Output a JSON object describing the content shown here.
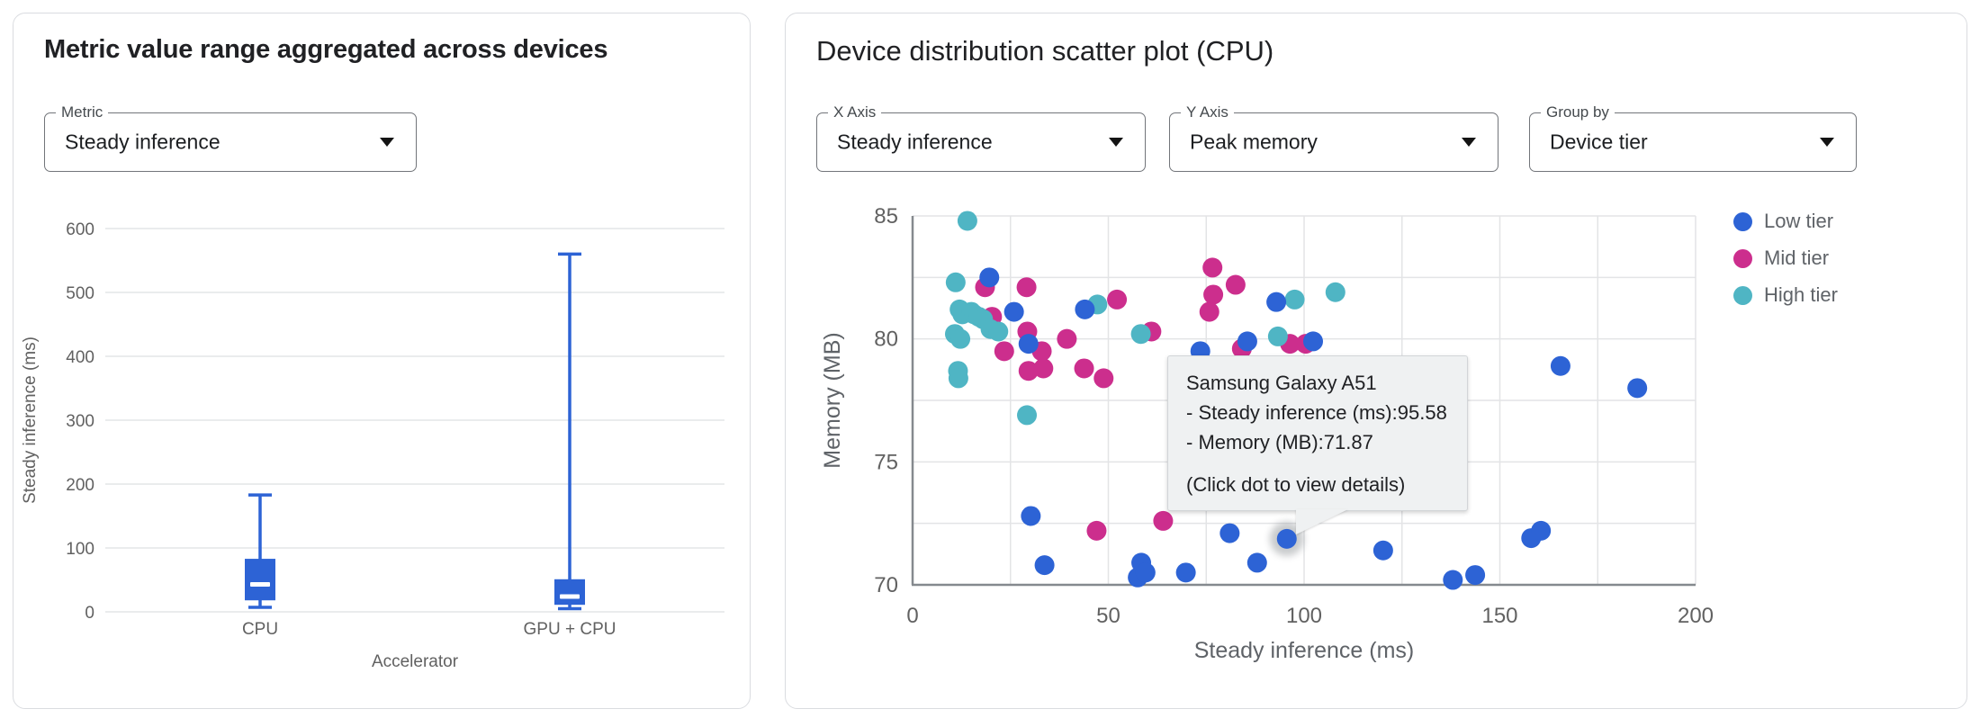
{
  "left_panel": {
    "title": "Metric value range aggregated across devices",
    "metric_select": {
      "label": "Metric",
      "value": "Steady inference"
    }
  },
  "right_panel": {
    "title": "Device distribution scatter plot (CPU)",
    "x_axis_select": {
      "label": "X Axis",
      "value": "Steady inference"
    },
    "y_axis_select": {
      "label": "Y Axis",
      "value": "Peak memory"
    },
    "group_by_select": {
      "label": "Group by",
      "value": "Device tier"
    },
    "tooltip": {
      "title": "Samsung Galaxy A51",
      "line1": "- Steady inference (ms):95.58",
      "line2": "- Memory (MB):71.87",
      "footer": "(Click dot to view details)"
    }
  },
  "chart_data": [
    {
      "type": "boxplot",
      "title": "",
      "xlabel": "Accelerator",
      "ylabel": "Steady inference (ms)",
      "ylim": [
        0,
        600
      ],
      "yticks": [
        0,
        100,
        200,
        300,
        400,
        500,
        600
      ],
      "categories": [
        "CPU",
        "GPU + CPU"
      ],
      "color": "#2D63D5",
      "boxes": [
        {
          "category": "CPU",
          "min": 7,
          "q1": 18,
          "median": 43,
          "q3": 83,
          "max": 183
        },
        {
          "category": "GPU + CPU",
          "min": 5,
          "q1": 11,
          "median": 24,
          "q3": 51,
          "max": 560
        }
      ]
    },
    {
      "type": "scatter",
      "title": "",
      "xlabel": "Steady inference (ms)",
      "ylabel": "Memory (MB)",
      "xlim": [
        0,
        200
      ],
      "ylim": [
        70,
        85
      ],
      "xticks": [
        0,
        50,
        100,
        150,
        200
      ],
      "yticks": [
        70,
        75,
        80,
        85
      ],
      "x_grid_step": 25,
      "y_grid_step": 2.5,
      "legend_position": "right",
      "grid": true,
      "series": [
        {
          "name": "Low tier",
          "color": "#2D63D5",
          "points": [
            [
              19.6,
              82.5
            ],
            [
              25.9,
              81.1
            ],
            [
              29.6,
              79.8
            ],
            [
              44,
              81.2
            ],
            [
              73.5,
              79.5
            ],
            [
              85.5,
              79.9
            ],
            [
              92.9,
              81.5
            ],
            [
              102.3,
              79.9
            ],
            [
              30.2,
              72.8
            ],
            [
              33.7,
              70.8
            ],
            [
              57.5,
              70.3
            ],
            [
              58.4,
              70.9
            ],
            [
              59.5,
              70.5
            ],
            [
              69.8,
              70.5
            ],
            [
              81,
              72.1
            ],
            [
              88,
              70.9
            ],
            [
              95.58,
              71.87
            ],
            [
              120.2,
              71.4
            ],
            [
              138,
              70.2
            ],
            [
              143.7,
              70.4
            ],
            [
              158,
              71.9
            ],
            [
              160.5,
              72.2
            ],
            [
              165.5,
              78.9
            ],
            [
              185.1,
              78
            ]
          ]
        },
        {
          "name": "Mid tier",
          "color": "#CC2E8D",
          "points": [
            [
              18.5,
              82.1
            ],
            [
              29.1,
              82.1
            ],
            [
              20.3,
              80.9
            ],
            [
              23.4,
              79.5
            ],
            [
              29.3,
              80.3
            ],
            [
              33,
              79.5
            ],
            [
              29.6,
              78.7
            ],
            [
              33.4,
              78.8
            ],
            [
              39.4,
              80
            ],
            [
              43.8,
              78.8
            ],
            [
              48.8,
              78.4
            ],
            [
              52.2,
              81.6
            ],
            [
              61,
              80.3
            ],
            [
              76.6,
              82.9
            ],
            [
              76.8,
              81.8
            ],
            [
              75.8,
              81.1
            ],
            [
              82.5,
              82.2
            ],
            [
              84.1,
              79.6
            ],
            [
              96.4,
              79.8
            ],
            [
              100.4,
              79.8
            ],
            [
              47,
              72.2
            ],
            [
              64,
              72.6
            ]
          ]
        },
        {
          "name": "High tier",
          "color": "#4FB5C4",
          "points": [
            [
              14,
              84.8
            ],
            [
              11,
              82.3
            ],
            [
              12,
              81.2
            ],
            [
              12.7,
              81
            ],
            [
              15,
              81.1
            ],
            [
              15.7,
              81
            ],
            [
              16.9,
              80.9
            ],
            [
              18,
              80.8
            ],
            [
              19.9,
              80.4
            ],
            [
              21.9,
              80.3
            ],
            [
              10.8,
              80.2
            ],
            [
              12.2,
              80
            ],
            [
              11.6,
              78.7
            ],
            [
              11.7,
              78.4
            ],
            [
              29.2,
              76.9
            ],
            [
              47.2,
              81.4
            ],
            [
              58.3,
              80.2
            ],
            [
              93.3,
              80.1
            ],
            [
              97.6,
              81.6
            ],
            [
              108,
              81.9
            ]
          ]
        }
      ],
      "highlighted_point": {
        "series": "Low tier",
        "x": 95.58,
        "y": 71.87
      }
    }
  ]
}
